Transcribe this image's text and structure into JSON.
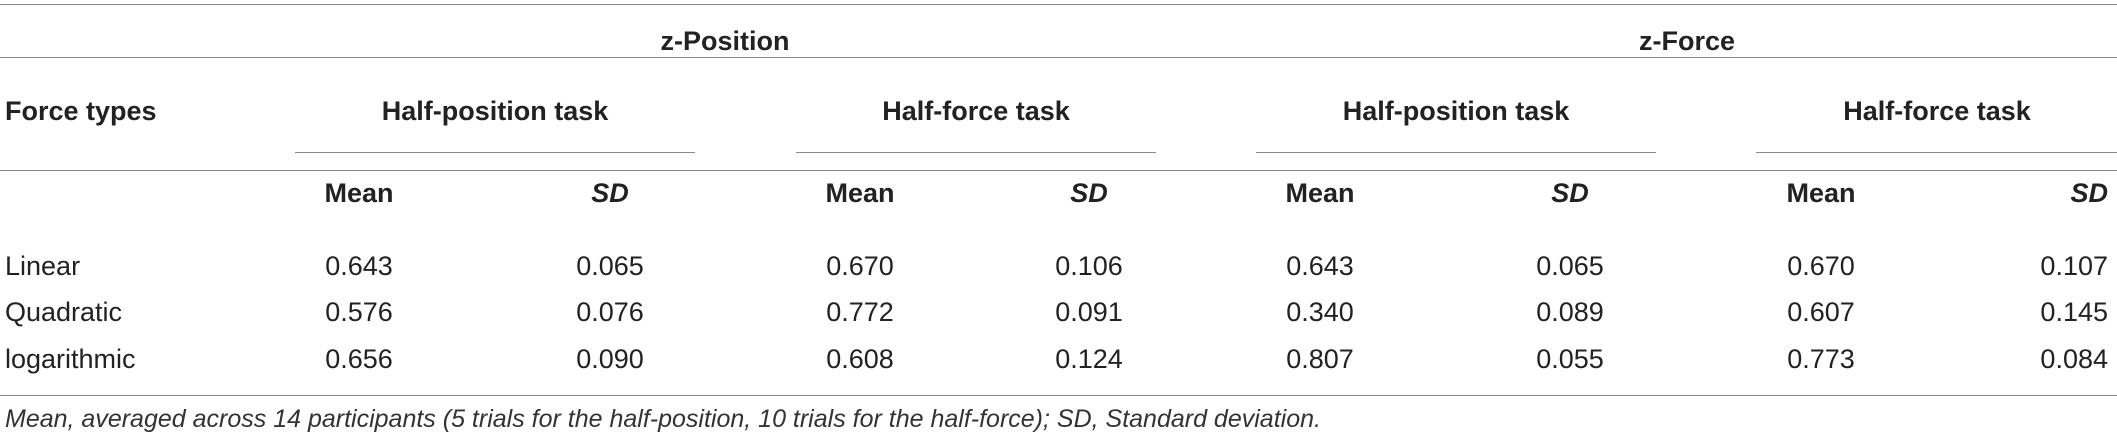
{
  "table": {
    "row_header": "Force types",
    "groups": [
      {
        "label": "z-Position",
        "tasks": [
          {
            "label": "Half-position task",
            "mean": "Mean",
            "sd": "SD"
          },
          {
            "label": "Half-force task",
            "mean": "Mean",
            "sd": "SD"
          }
        ]
      },
      {
        "label": "z-Force",
        "tasks": [
          {
            "label": "Half-position task",
            "mean": "Mean",
            "sd": "SD"
          },
          {
            "label": "Half-force task",
            "mean": "Mean",
            "sd": "SD"
          }
        ]
      }
    ],
    "rows": [
      {
        "label": "Linear",
        "values": [
          "0.643",
          "0.065",
          "0.670",
          "0.106",
          "0.643",
          "0.065",
          "0.670",
          "0.107"
        ]
      },
      {
        "label": "Quadratic",
        "values": [
          "0.576",
          "0.076",
          "0.772",
          "0.091",
          "0.340",
          "0.089",
          "0.607",
          "0.145"
        ]
      },
      {
        "label": "logarithmic",
        "values": [
          "0.656",
          "0.090",
          "0.608",
          "0.124",
          "0.807",
          "0.055",
          "0.773",
          "0.084"
        ]
      }
    ],
    "footnote": "Mean, averaged across 14 participants (5 trials for the half-position, 10 trials for the half-force); SD, Standard deviation."
  }
}
